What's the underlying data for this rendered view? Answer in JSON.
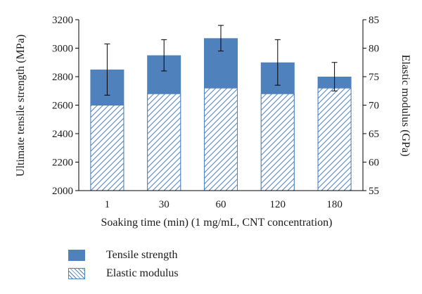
{
  "chart_data": {
    "type": "bar",
    "categories": [
      "1",
      "30",
      "60",
      "120",
      "180"
    ],
    "xlabel": "Soaking time (min) (1 mg/mL, CNT concentration)",
    "left_axis": {
      "label": "Ultimate tensile strength (MPa)",
      "lim": [
        2000,
        3200
      ],
      "ticks": [
        "2000",
        "2200",
        "2400",
        "2600",
        "2800",
        "3000",
        "3200"
      ]
    },
    "right_axis": {
      "label": "Elastic modulus (GPa)",
      "lim": [
        55,
        85
      ],
      "ticks": [
        "55",
        "60",
        "65",
        "70",
        "75",
        "80",
        "85"
      ]
    },
    "series": [
      {
        "name": "Tensile strength",
        "axis": "left",
        "style": "solid",
        "color": "#4f81bd",
        "values": [
          2850,
          2950,
          3070,
          2900,
          2800
        ],
        "error": [
          180,
          110,
          90,
          160,
          100
        ]
      },
      {
        "name": "Elastic modulus",
        "axis": "right",
        "style": "hatched",
        "color": "#4f81bd",
        "values": [
          70,
          72,
          73,
          72,
          73
        ]
      }
    ],
    "legend_position": "bottom-left",
    "grid": false
  }
}
